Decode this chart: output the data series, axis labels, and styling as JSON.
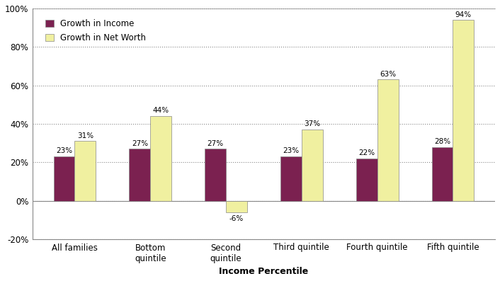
{
  "categories": [
    "All families",
    "Bottom\nquintile",
    "Second\nquintile",
    "Third quintile",
    "Fourth quintile",
    "Fifth quintile"
  ],
  "income_values": [
    23,
    27,
    27,
    23,
    22,
    28
  ],
  "networth_values": [
    31,
    44,
    -6,
    37,
    63,
    94
  ],
  "income_color": "#7B2150",
  "networth_color": "#F0F0A0",
  "income_label": "Growth in Income",
  "networth_label": "Growth in Net Worth",
  "xlabel": "Income Percentile",
  "ylim": [
    -20,
    100
  ],
  "yticks": [
    -20,
    0,
    20,
    40,
    60,
    80,
    100
  ],
  "ytick_labels": [
    "-20%",
    "0%",
    "20%",
    "40%",
    "60%",
    "80%",
    "100%"
  ],
  "bar_width": 0.28,
  "grid_color": "#888888",
  "background_color": "#ffffff",
  "bar_edge_color": "#888888",
  "bar_edge_width": 0.5,
  "label_fontsize": 7.5,
  "axis_label_fontsize": 8.5,
  "legend_fontsize": 8.5,
  "xlabel_fontsize": 9,
  "spine_color": "#888888"
}
